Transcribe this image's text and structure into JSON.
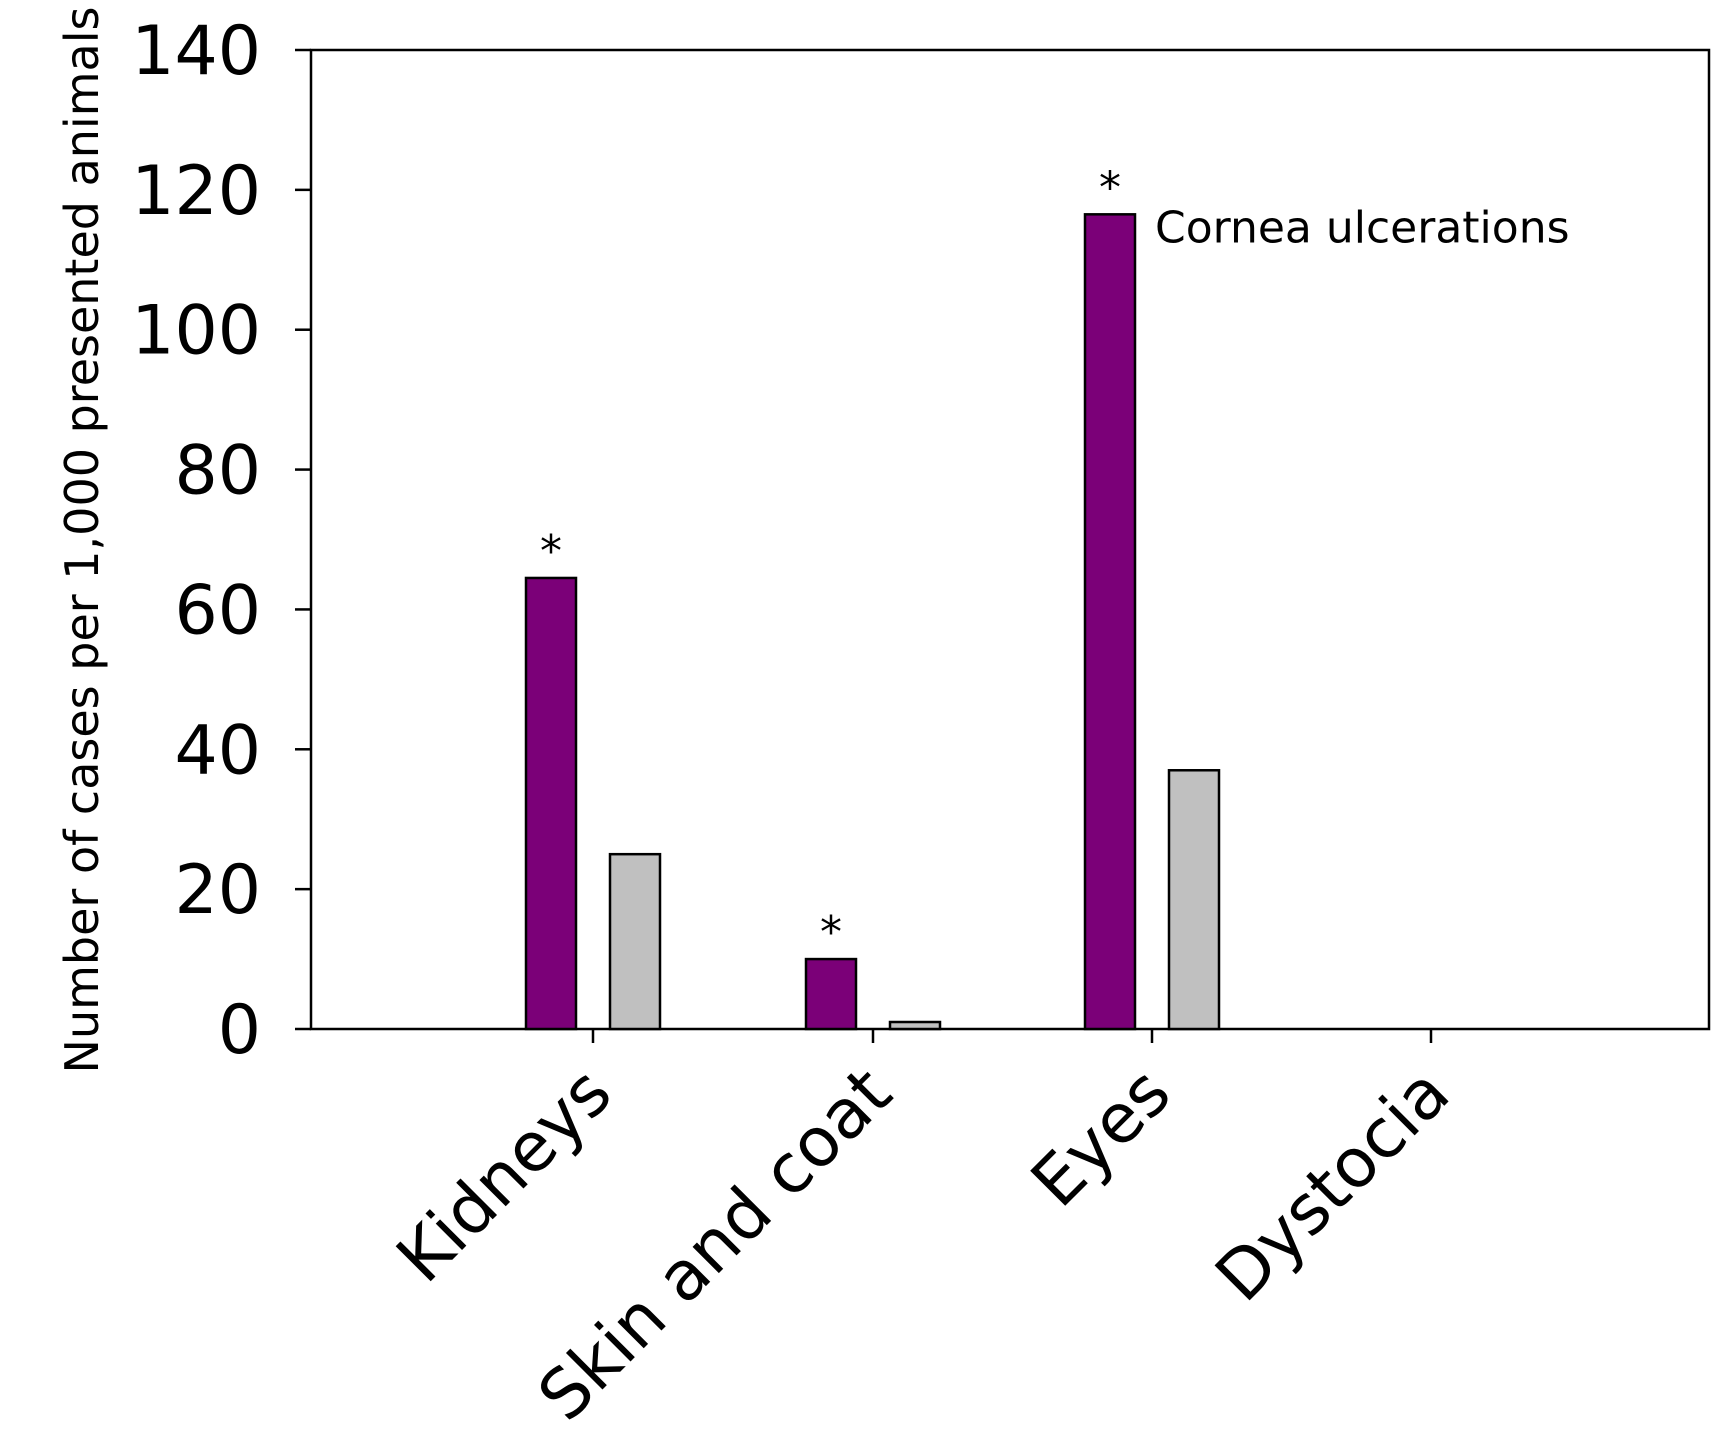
{
  "chart_data": {
    "type": "bar",
    "ylabel": "Number of cases per 1,000 presented animals",
    "ylim": [
      0,
      140
    ],
    "yticks": [
      0,
      20,
      40,
      60,
      80,
      100,
      120,
      140
    ],
    "ytick_labels": [
      "0",
      "20",
      "40",
      "60",
      "80",
      "100",
      "120",
      "140"
    ],
    "categories": [
      "Kidneys",
      "Skin and coat",
      "Eyes",
      "Dystocia"
    ],
    "series": [
      {
        "color": "#7b0078",
        "values": [
          64.5,
          10,
          116.5,
          0
        ],
        "significance": [
          "*",
          "*",
          "*",
          ""
        ]
      },
      {
        "color": "#c0c0c0",
        "values": [
          25,
          1,
          37,
          0
        ]
      }
    ],
    "annotations": [
      {
        "text": "Cornea ulcerations",
        "category": "Eyes"
      }
    ],
    "grid": false,
    "legend": "none"
  }
}
